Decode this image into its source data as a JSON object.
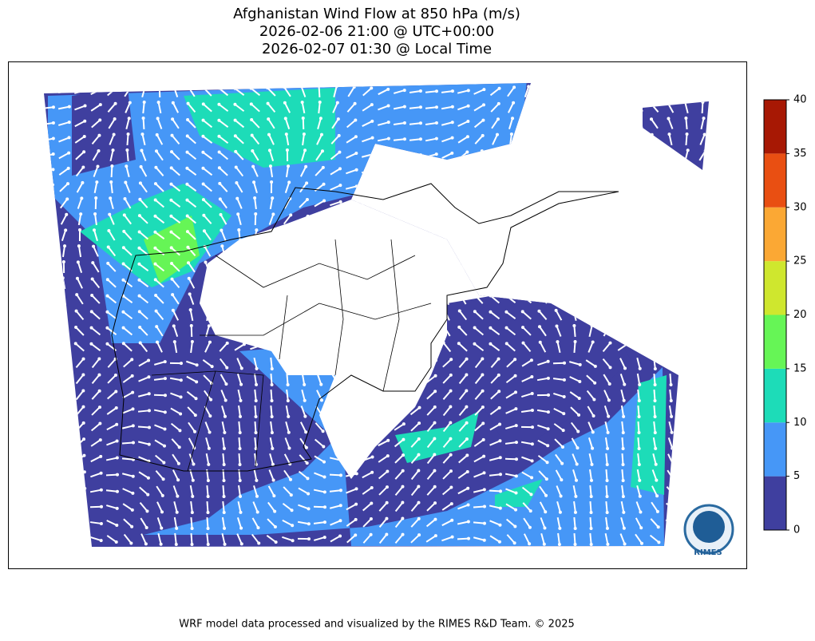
{
  "header": {
    "title": [
      "Afghanistan Wind Flow at 850 hPa (m/s)",
      "2026-02-06 21:00 @ UTC+00:00",
      "2026-02-07 01:30 @ Local Time"
    ]
  },
  "colorbar": {
    "ticks": [
      0,
      5,
      10,
      15,
      20,
      25,
      30,
      35,
      40
    ],
    "colors": [
      "#3f3f9f",
      "#4697f7",
      "#1ddcb8",
      "#66f556",
      "#cfe72e",
      "#fba834",
      "#e94f12",
      "#a71804"
    ]
  },
  "logo": {
    "text": "RIMES"
  },
  "footer": {
    "text": "WRF model data processed and visualized by the RIMES R&D Team. © 2025"
  }
}
